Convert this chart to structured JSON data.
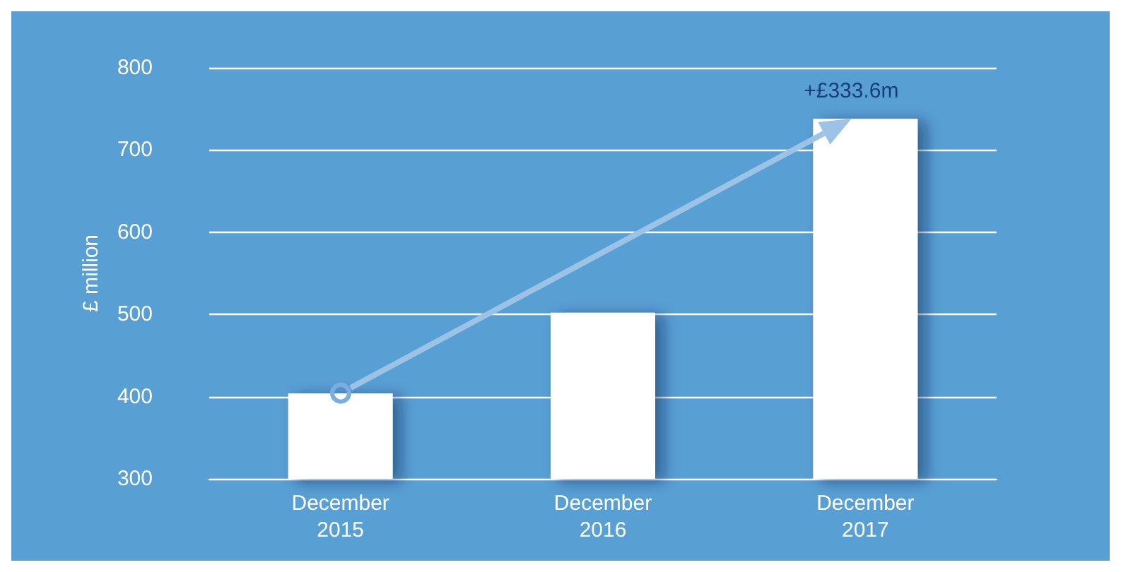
{
  "chart_data": {
    "type": "bar",
    "ylabel": "£ million",
    "categories": [
      "December\n2015",
      "December\n2016",
      "December\n2017"
    ],
    "values": [
      404,
      502,
      738
    ],
    "color": "#ffffff",
    "ylim": [
      300,
      800
    ],
    "yticks": [
      300,
      400,
      500,
      600,
      700,
      800
    ],
    "grid": "y",
    "annotations": [
      {
        "text": "+£333.6m",
        "x": "December\n2017",
        "y": 738
      }
    ]
  }
}
